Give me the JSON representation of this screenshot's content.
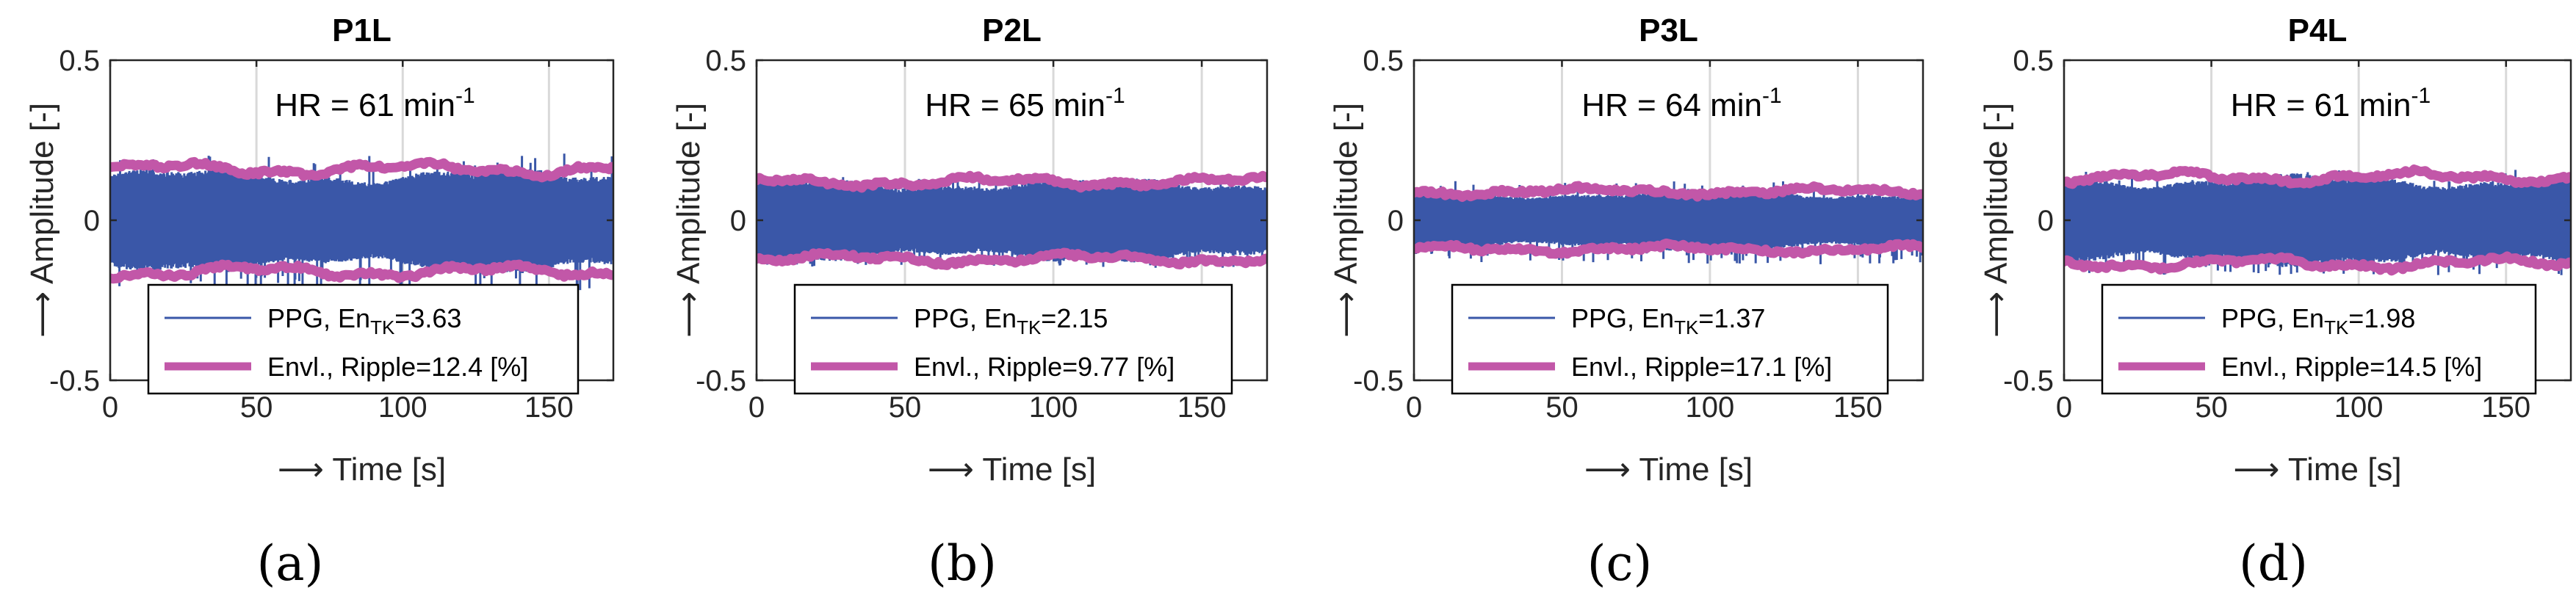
{
  "panels": [
    {
      "id": "a",
      "caption": "(a)",
      "chart_data": {
        "type": "line",
        "title": "P1L",
        "xlabel": "⟶ Time [s]",
        "ylabel": "⟶ Amplitude [-]",
        "xlim": [
          0,
          172
        ],
        "ylim": [
          -0.5,
          0.5
        ],
        "xticks": [
          0,
          50,
          100,
          150
        ],
        "xtick_labels": [
          "0",
          "50",
          "100",
          "150"
        ],
        "yticks": [
          -0.5,
          0,
          0.5
        ],
        "ytick_labels": [
          "-0.5",
          "0",
          "0.5"
        ],
        "grid": "x",
        "annotation": {
          "prefix": "HR = 61 min",
          "superscript": "-1"
        },
        "legend": {
          "placement": "bottom",
          "entries": [
            {
              "label": "PPG, En",
              "subscript": "TK",
              "value": "=3.63"
            },
            {
              "label": "Envl., Ripple=12.4 [%]"
            }
          ]
        },
        "series": [
          {
            "name": "PPG",
            "color": "#3a57a8",
            "amplitude": 0.135,
            "spike": 0.2
          },
          {
            "name": "Envl.",
            "color": "#c257a8",
            "upper": 0.16,
            "lower": -0.16
          }
        ]
      }
    },
    {
      "id": "b",
      "caption": "(b)",
      "chart_data": {
        "type": "line",
        "title": "P2L",
        "xlabel": "⟶ Time [s]",
        "ylabel": "⟶ Amplitude [-]",
        "xlim": [
          0,
          172
        ],
        "ylim": [
          -0.5,
          0.5
        ],
        "xticks": [
          0,
          50,
          100,
          150
        ],
        "xtick_labels": [
          "0",
          "50",
          "100",
          "150"
        ],
        "yticks": [
          -0.5,
          0,
          0.5
        ],
        "ytick_labels": [
          "-0.5",
          "0",
          "0.5"
        ],
        "grid": "x",
        "annotation": {
          "prefix": "HR = 65 min",
          "superscript": "-1"
        },
        "legend": {
          "placement": "bottom",
          "entries": [
            {
              "label": "PPG, En",
              "subscript": "TK",
              "value": "=2.15"
            },
            {
              "label": "Envl., Ripple=9.77 [%]"
            }
          ]
        },
        "series": [
          {
            "name": "PPG",
            "color": "#3a57a8",
            "amplitude": 0.11,
            "spike": 0.13
          },
          {
            "name": "Envl.",
            "color": "#c257a8",
            "upper": 0.12,
            "lower": -0.12
          }
        ]
      }
    },
    {
      "id": "c",
      "caption": "(c)",
      "chart_data": {
        "type": "line",
        "title": "P3L",
        "xlabel": "⟶ Time [s]",
        "ylabel": "⟶ Amplitude [-]",
        "xlim": [
          0,
          172
        ],
        "ylim": [
          -0.5,
          0.5
        ],
        "xticks": [
          0,
          50,
          100,
          150
        ],
        "xtick_labels": [
          "0",
          "50",
          "100",
          "150"
        ],
        "yticks": [
          -0.5,
          0,
          0.5
        ],
        "ytick_labels": [
          "-0.5",
          "0",
          "0.5"
        ],
        "grid": "x",
        "annotation": {
          "prefix": "HR = 64 min",
          "superscript": "-1"
        },
        "legend": {
          "placement": "bottom",
          "entries": [
            {
              "label": "PPG, En",
              "subscript": "TK",
              "value": "=1.37"
            },
            {
              "label": "Envl., Ripple=17.1 [%]"
            }
          ]
        },
        "series": [
          {
            "name": "PPG",
            "color": "#3a57a8",
            "amplitude": 0.08,
            "spike": 0.12
          },
          {
            "name": "Envl.",
            "color": "#c257a8",
            "upper": 0.09,
            "lower": -0.09
          }
        ]
      }
    },
    {
      "id": "d",
      "caption": "(d)",
      "chart_data": {
        "type": "line",
        "title": "P4L",
        "xlabel": "⟶ Time [s]",
        "ylabel": "⟶ Amplitude [-]",
        "xlim": [
          0,
          172
        ],
        "ylim": [
          -0.5,
          0.5
        ],
        "xticks": [
          0,
          50,
          100,
          150
        ],
        "xtick_labels": [
          "0",
          "50",
          "100",
          "150"
        ],
        "yticks": [
          -0.5,
          0,
          0.5
        ],
        "ytick_labels": [
          "-0.5",
          "0",
          "0.5"
        ],
        "grid": "x",
        "annotation": {
          "prefix": "HR = 61 min",
          "superscript": "-1"
        },
        "legend": {
          "placement": "bottom",
          "entries": [
            {
              "label": "PPG, En",
              "subscript": "TK",
              "value": "=1.98"
            },
            {
              "label": "Envl., Ripple=14.5 [%]"
            }
          ]
        },
        "series": [
          {
            "name": "PPG",
            "color": "#3a57a8",
            "amplitude": 0.12,
            "spike": 0.15
          },
          {
            "name": "Envl.",
            "color": "#c257a8",
            "upper": 0.135,
            "lower": -0.135
          }
        ]
      }
    }
  ]
}
